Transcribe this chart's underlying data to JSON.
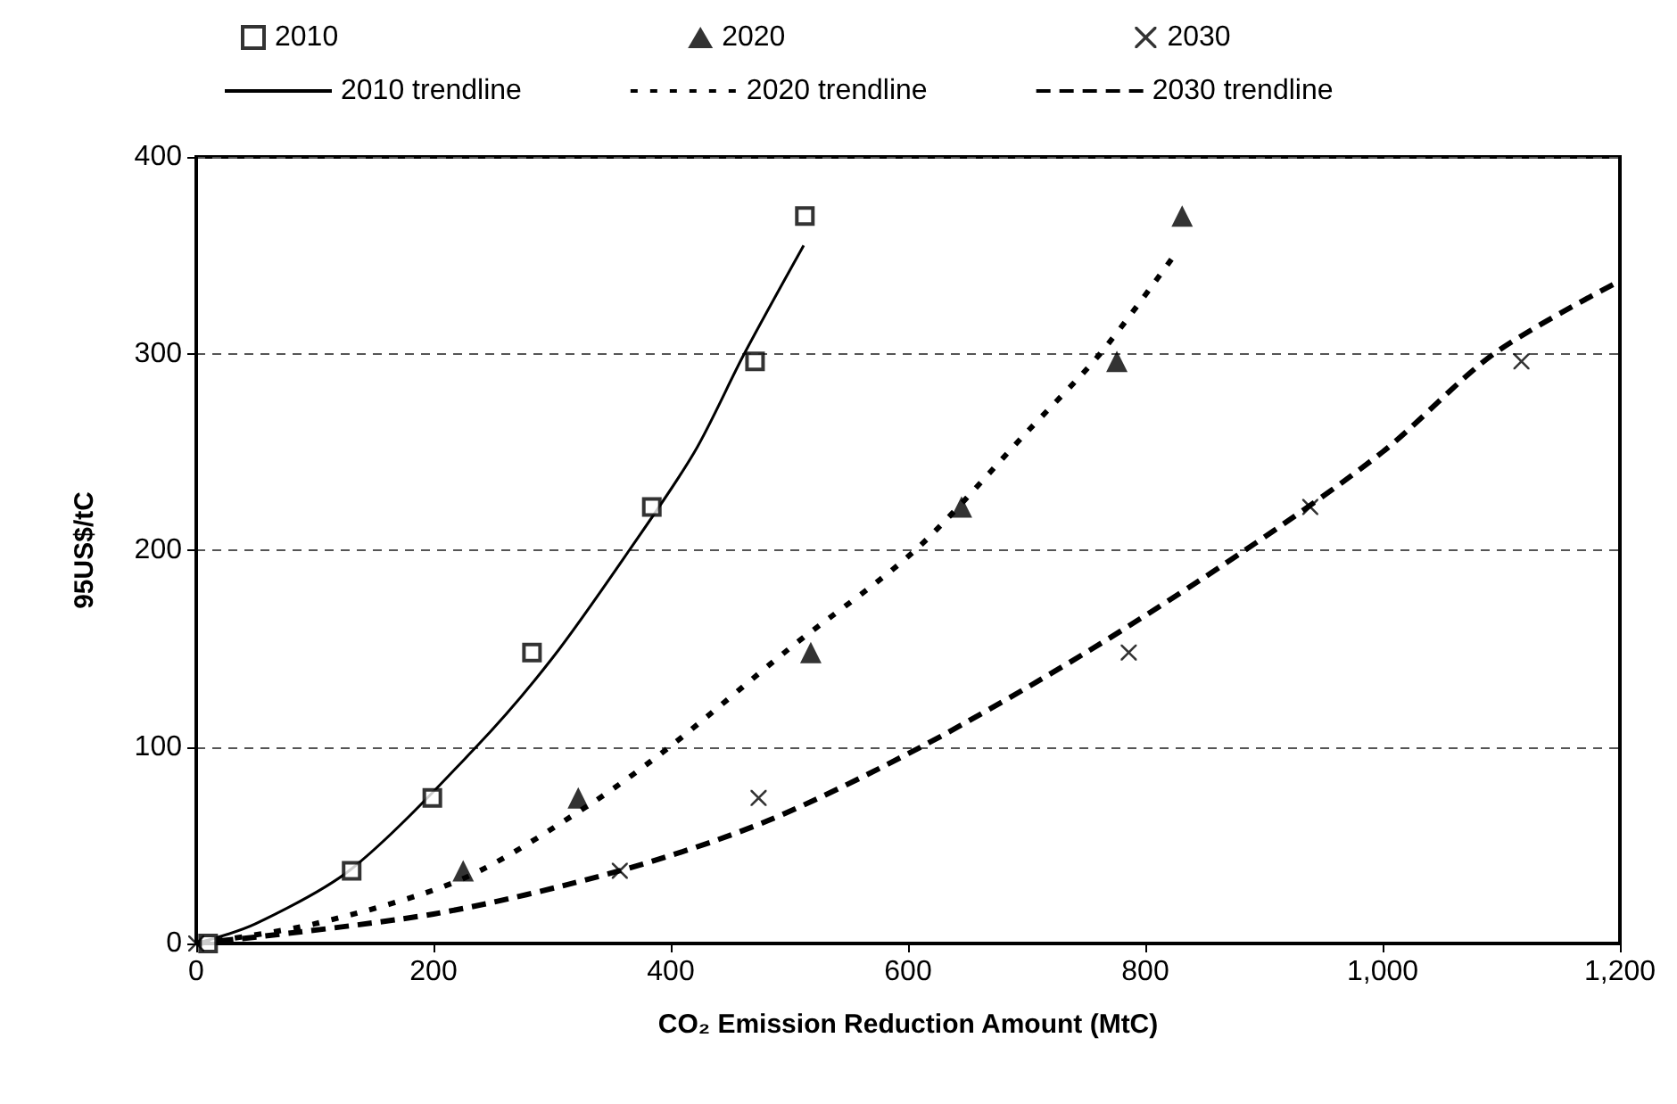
{
  "chart_data": {
    "type": "scatter",
    "xlabel": "CO₂ Emission Reduction Amount (MtC)",
    "ylabel": "95US$/tC",
    "xlim": [
      0,
      1200
    ],
    "xticks": [
      0,
      200,
      400,
      600,
      800,
      {
        "value": 1000,
        "label": "1,000"
      },
      {
        "value": 1200,
        "label": "1,200"
      }
    ],
    "ylim": [
      0,
      400
    ],
    "yticks": [
      0,
      100,
      200,
      300,
      400
    ],
    "grid": "y",
    "legend": "top",
    "series": [
      {
        "name": "2010",
        "color": "#000000",
        "marker": "square",
        "x": [
          10,
          131,
          199,
          283,
          384,
          471,
          513
        ],
        "values": [
          0,
          37,
          74,
          148,
          222,
          296,
          370
        ]
      },
      {
        "name": "2020",
        "color": "#000000",
        "marker": "triangle",
        "x": [
          225,
          322,
          518,
          645,
          776,
          831
        ],
        "values": [
          37,
          74,
          148,
          222,
          296,
          370
        ]
      },
      {
        "name": "2030",
        "color": "#000000",
        "marker": "cross",
        "x": [
          0,
          357,
          474,
          786,
          939,
          1117
        ],
        "values": [
          0,
          37,
          74,
          148,
          222,
          296
        ]
      },
      {
        "name": "2010 trendline",
        "type": "line",
        "color": "#000000",
        "line_style": "solid",
        "x": [
          0,
          50,
          131,
          236,
          300,
          365,
          420,
          462,
          512
        ],
        "values": [
          0,
          10,
          38,
          100,
          145,
          200,
          250,
          300,
          355
        ]
      },
      {
        "name": "2020 trendline",
        "type": "line",
        "color": "#000000",
        "line_style": "dotted",
        "x": [
          0,
          100,
          225,
          330,
          399,
          500,
          606,
          700,
          762,
          822
        ],
        "values": [
          0,
          10,
          33,
          70,
          100,
          150,
          200,
          260,
          300,
          348
        ]
      },
      {
        "name": "2030 trendline",
        "type": "line",
        "color": "#000000",
        "line_style": "dashed",
        "x": [
          0,
          200,
          357,
          480,
          611,
          750,
          884,
          1000,
          1094,
          1200
        ],
        "values": [
          0,
          15,
          37,
          62,
          100,
          148,
          200,
          250,
          300,
          337
        ]
      }
    ]
  }
}
